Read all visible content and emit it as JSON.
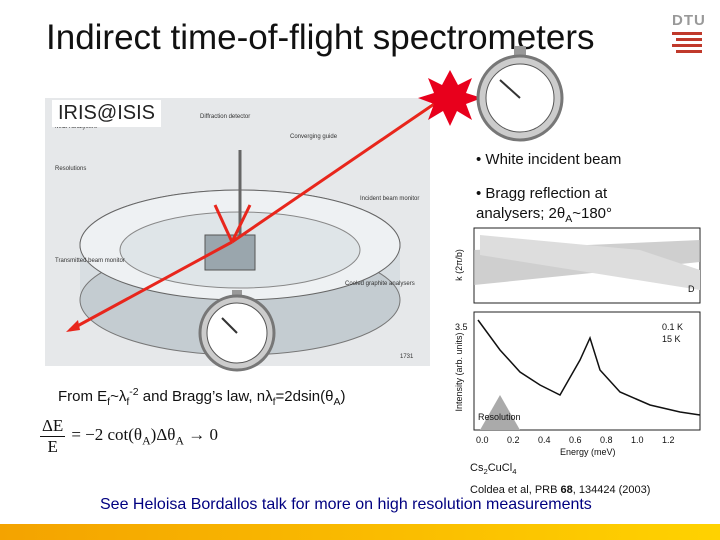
{
  "logo": "DTU",
  "title": "Indirect time-of-flight spectrometers",
  "instrument": "IRIS@ISIS",
  "bullets": [
    [
      "• White incident beam"
    ],
    [
      "• Bragg reflection at analysers; 2θ",
      "A",
      "~180°"
    ]
  ],
  "relation": [
    "From E",
    "f",
    "~λ",
    "f",
    "-2",
    "  and Bragg’s law, nλ",
    "f",
    "=2dsin(θ",
    "A",
    ")"
  ],
  "formula": {
    "numerator": "ΔE",
    "denominator": "E",
    "rhs": [
      "= −2 cot(θ",
      "A",
      ")Δθ",
      "A",
      " → 0"
    ]
  },
  "diagram_labels": [
    "Diffraction detector",
    "Converging guide",
    "MICA analysers",
    "Resolutions",
    "Incident beam monitor",
    "Transmitted beam monitor",
    "Cooled graphite analysers",
    "1731"
  ],
  "plot": {
    "top_ylabel": "k (2π/b)",
    "top_label": "D",
    "ylabel": "Intensity (arb. units)",
    "legend": [
      "0.1 K",
      "15 K"
    ],
    "resolution": "Resolution",
    "xlabel": "Energy (meV)",
    "xticks": [
      "0.0",
      "0.2",
      "0.4",
      "0.6",
      "0.8",
      "1.0",
      "1.2"
    ],
    "ytick": "3.5"
  },
  "compound": [
    "Cs",
    "2",
    "CuCl",
    "4"
  ],
  "reference": [
    "Coldea et al, PRB ",
    "68",
    ", 134424 (2003)"
  ],
  "footer": "See Heloisa Bordallos talk for more on high resolution measurements"
}
